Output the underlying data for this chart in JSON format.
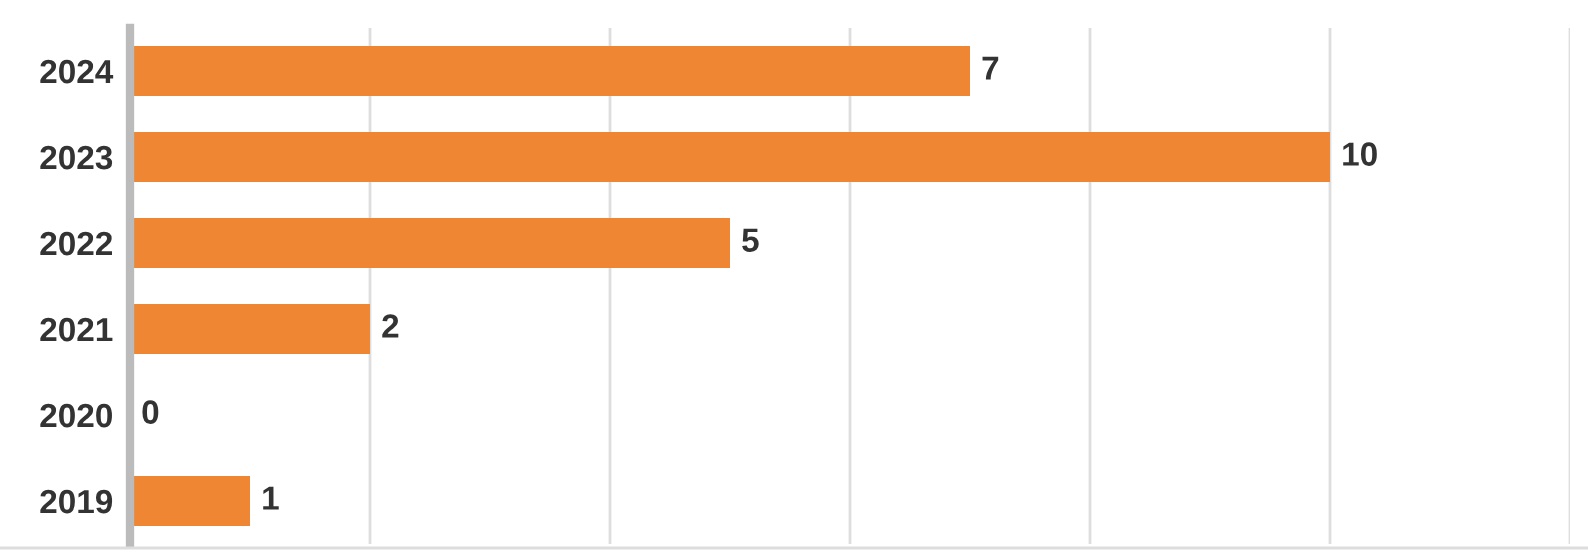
{
  "chart_data": {
    "type": "bar",
    "orientation": "horizontal",
    "categories": [
      "2024",
      "2023",
      "2022",
      "2021",
      "2020",
      "2019"
    ],
    "values": [
      7,
      10,
      5,
      2,
      0,
      1
    ],
    "color": "#ee8633",
    "xlim": [
      0,
      12
    ],
    "xticks": [
      {
        "value": 0,
        "label": null
      },
      {
        "value": 2,
        "label": null
      },
      {
        "value": 4,
        "label": null
      },
      {
        "value": 6,
        "label": null
      },
      {
        "value": 8,
        "label": null
      },
      {
        "value": 10,
        "label": null
      },
      {
        "value": 12,
        "label": null
      }
    ],
    "tick_labels": "y",
    "grid": "x",
    "data_labels": true
  }
}
